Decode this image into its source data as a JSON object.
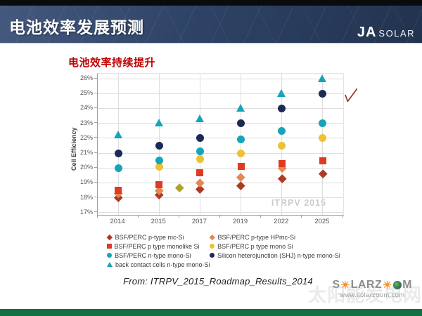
{
  "header": {
    "title": "电池效率发展预测",
    "brand": {
      "ja": "JA",
      "solar": "SOLAR"
    }
  },
  "source_text": "From: ITRPV_2015_Roadmap_Results_2014",
  "footer": {
    "logo": {
      "part1": "S",
      "part2": "LARZ",
      "part3": "M",
      "sun_glyph": "☀"
    },
    "logo_url": "www.solarzoom.com",
    "cn_watermark": "太阳能发电网"
  },
  "annotation": {
    "check_color": "#8a3326"
  },
  "chart_data": {
    "type": "scatter",
    "title": "电池效率持续提升",
    "ylabel": "Cell Efficiency",
    "ylim": [
      17,
      26
    ],
    "ytick_step": 1,
    "ytick_suffix": "%",
    "grid": true,
    "watermark": "ITRPV 2015",
    "categories": [
      "2014",
      "2015",
      "2017",
      "2019",
      "2022",
      "2025"
    ],
    "series": [
      {
        "name": "BSF/PERC p-type mc-Si",
        "marker": "diamond",
        "color": "#ae3a28",
        "values": [
          18.0,
          18.2,
          18.6,
          18.8,
          19.3,
          19.6
        ]
      },
      {
        "name": "BSF/PERC p-type HPmc-Si",
        "marker": "diamond",
        "color": "#e28a52",
        "values": [
          18.3,
          18.5,
          19.0,
          19.4,
          20.0,
          null
        ]
      },
      {
        "name": "BSF/PERC p type monolike Si",
        "marker": "square",
        "color": "#df3a23",
        "values": [
          18.5,
          18.9,
          19.7,
          20.1,
          20.3,
          20.5
        ]
      },
      {
        "name": "BSF/PERC p type mono Si",
        "marker": "circle",
        "color": "#edc133",
        "values": [
          null,
          20.1,
          20.6,
          21.0,
          21.5,
          22.0
        ]
      },
      {
        "name": "BSF/PERC n-type mono-Si",
        "marker": "circle",
        "color": "#16a5b8",
        "values": [
          20.0,
          20.5,
          21.1,
          21.9,
          22.5,
          23.0
        ]
      },
      {
        "name": "Silicon heterojunction (SHJ) n-type mono-Si",
        "marker": "circle",
        "color": "#1c2b55",
        "values": [
          21.0,
          21.5,
          22.0,
          23.0,
          24.0,
          25.0
        ]
      },
      {
        "name": "back contact cells n-type mono-Si",
        "marker": "triangle",
        "color": "#16a5b8",
        "values": [
          22.2,
          23.0,
          23.3,
          24.0,
          25.0,
          26.0
        ]
      }
    ],
    "extra_points": [
      {
        "between": "2015-2017",
        "x_slot": 2.0,
        "value": 18.7,
        "marker": "diamond",
        "color": "#b1a22e"
      }
    ],
    "legend_columns": [
      [
        0,
        2,
        4,
        6
      ],
      [
        1,
        3,
        5
      ]
    ],
    "legend_position": "bottom"
  }
}
